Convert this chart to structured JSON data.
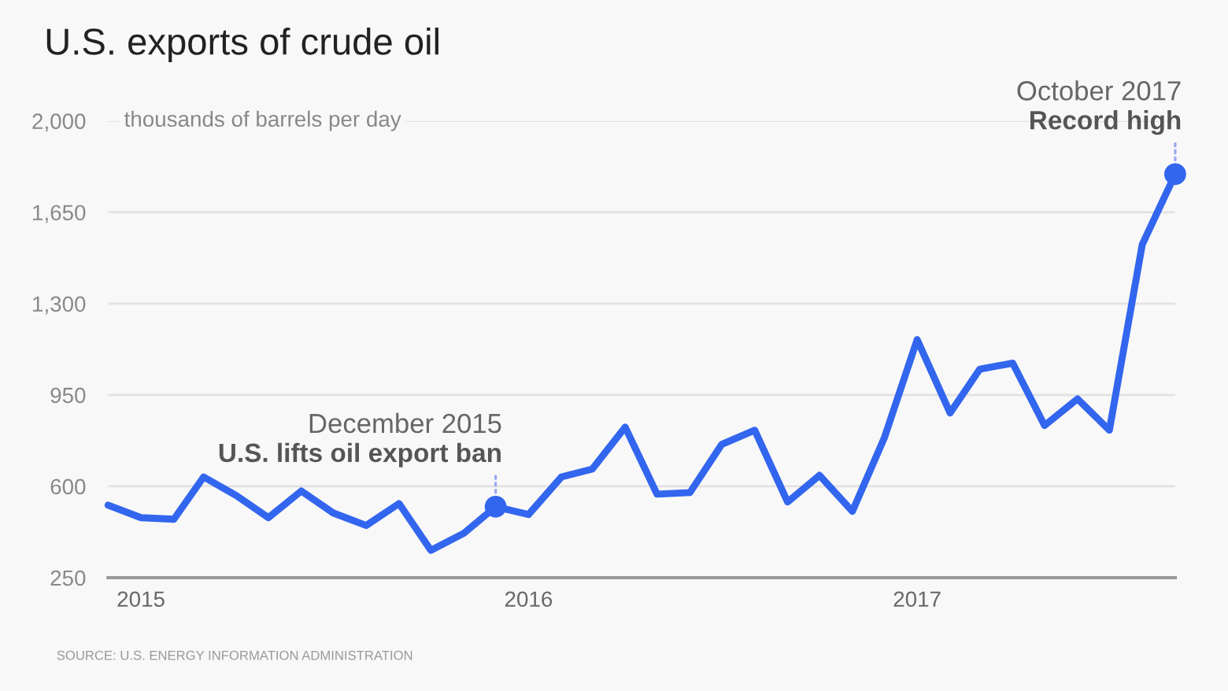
{
  "chart_data": {
    "type": "line",
    "title": "U.S. exports of crude oil",
    "ylabel": "thousands of barrels per day",
    "x": [
      "2014-12",
      "2015-01",
      "2015-02",
      "2015-03",
      "2015-04",
      "2015-05",
      "2015-06",
      "2015-07",
      "2015-08",
      "2015-09",
      "2015-10",
      "2015-11",
      "2015-12",
      "2016-01",
      "2016-02",
      "2016-03",
      "2016-04",
      "2016-05",
      "2016-06",
      "2016-07",
      "2016-08",
      "2016-09",
      "2016-10",
      "2016-11",
      "2016-12",
      "2017-01",
      "2017-02",
      "2017-03",
      "2017-04",
      "2017-05",
      "2017-06",
      "2017-07",
      "2017-08",
      "2017-09"
    ],
    "series": [
      {
        "color": "#3366ee",
        "values": [
          528,
          480,
          474,
          636,
          564,
          480,
          582,
          498,
          450,
          534,
          355,
          420,
          522,
          492,
          636,
          666,
          827,
          570,
          576,
          761,
          815,
          540,
          642,
          504,
          785,
          1162,
          881,
          1049,
          1072,
          833,
          935,
          815,
          1527,
          1796
        ]
      }
    ],
    "ylim": [
      250,
      2000
    ],
    "yticks": [
      {
        "value": 250,
        "label": "250"
      },
      {
        "value": 600,
        "label": "600"
      },
      {
        "value": 950,
        "label": "950"
      },
      {
        "value": 1300,
        "label": "1,300"
      },
      {
        "value": 1650,
        "label": "1,650"
      },
      {
        "value": 2000,
        "label": "2,000"
      }
    ],
    "xlim": [
      "2014-12",
      "2017-09"
    ],
    "xticks": [
      {
        "value": "2015-01",
        "label": "2015"
      },
      {
        "value": "2016-01",
        "label": "2016"
      },
      {
        "value": "2017-01",
        "label": "2017"
      }
    ],
    "grid": "y",
    "marker": "none",
    "line_style": "solid",
    "annotations": [
      {
        "text": "U.S. lifts oil export ban",
        "x": "2015-12",
        "y": 522
      },
      {
        "text": "Record high",
        "x": "2017-09",
        "y": 1796
      },
      "December 2015",
      "October 2017",
      "SOURCE: U.S. ENERGY INFORMATION ADMINISTRATION"
    ]
  }
}
